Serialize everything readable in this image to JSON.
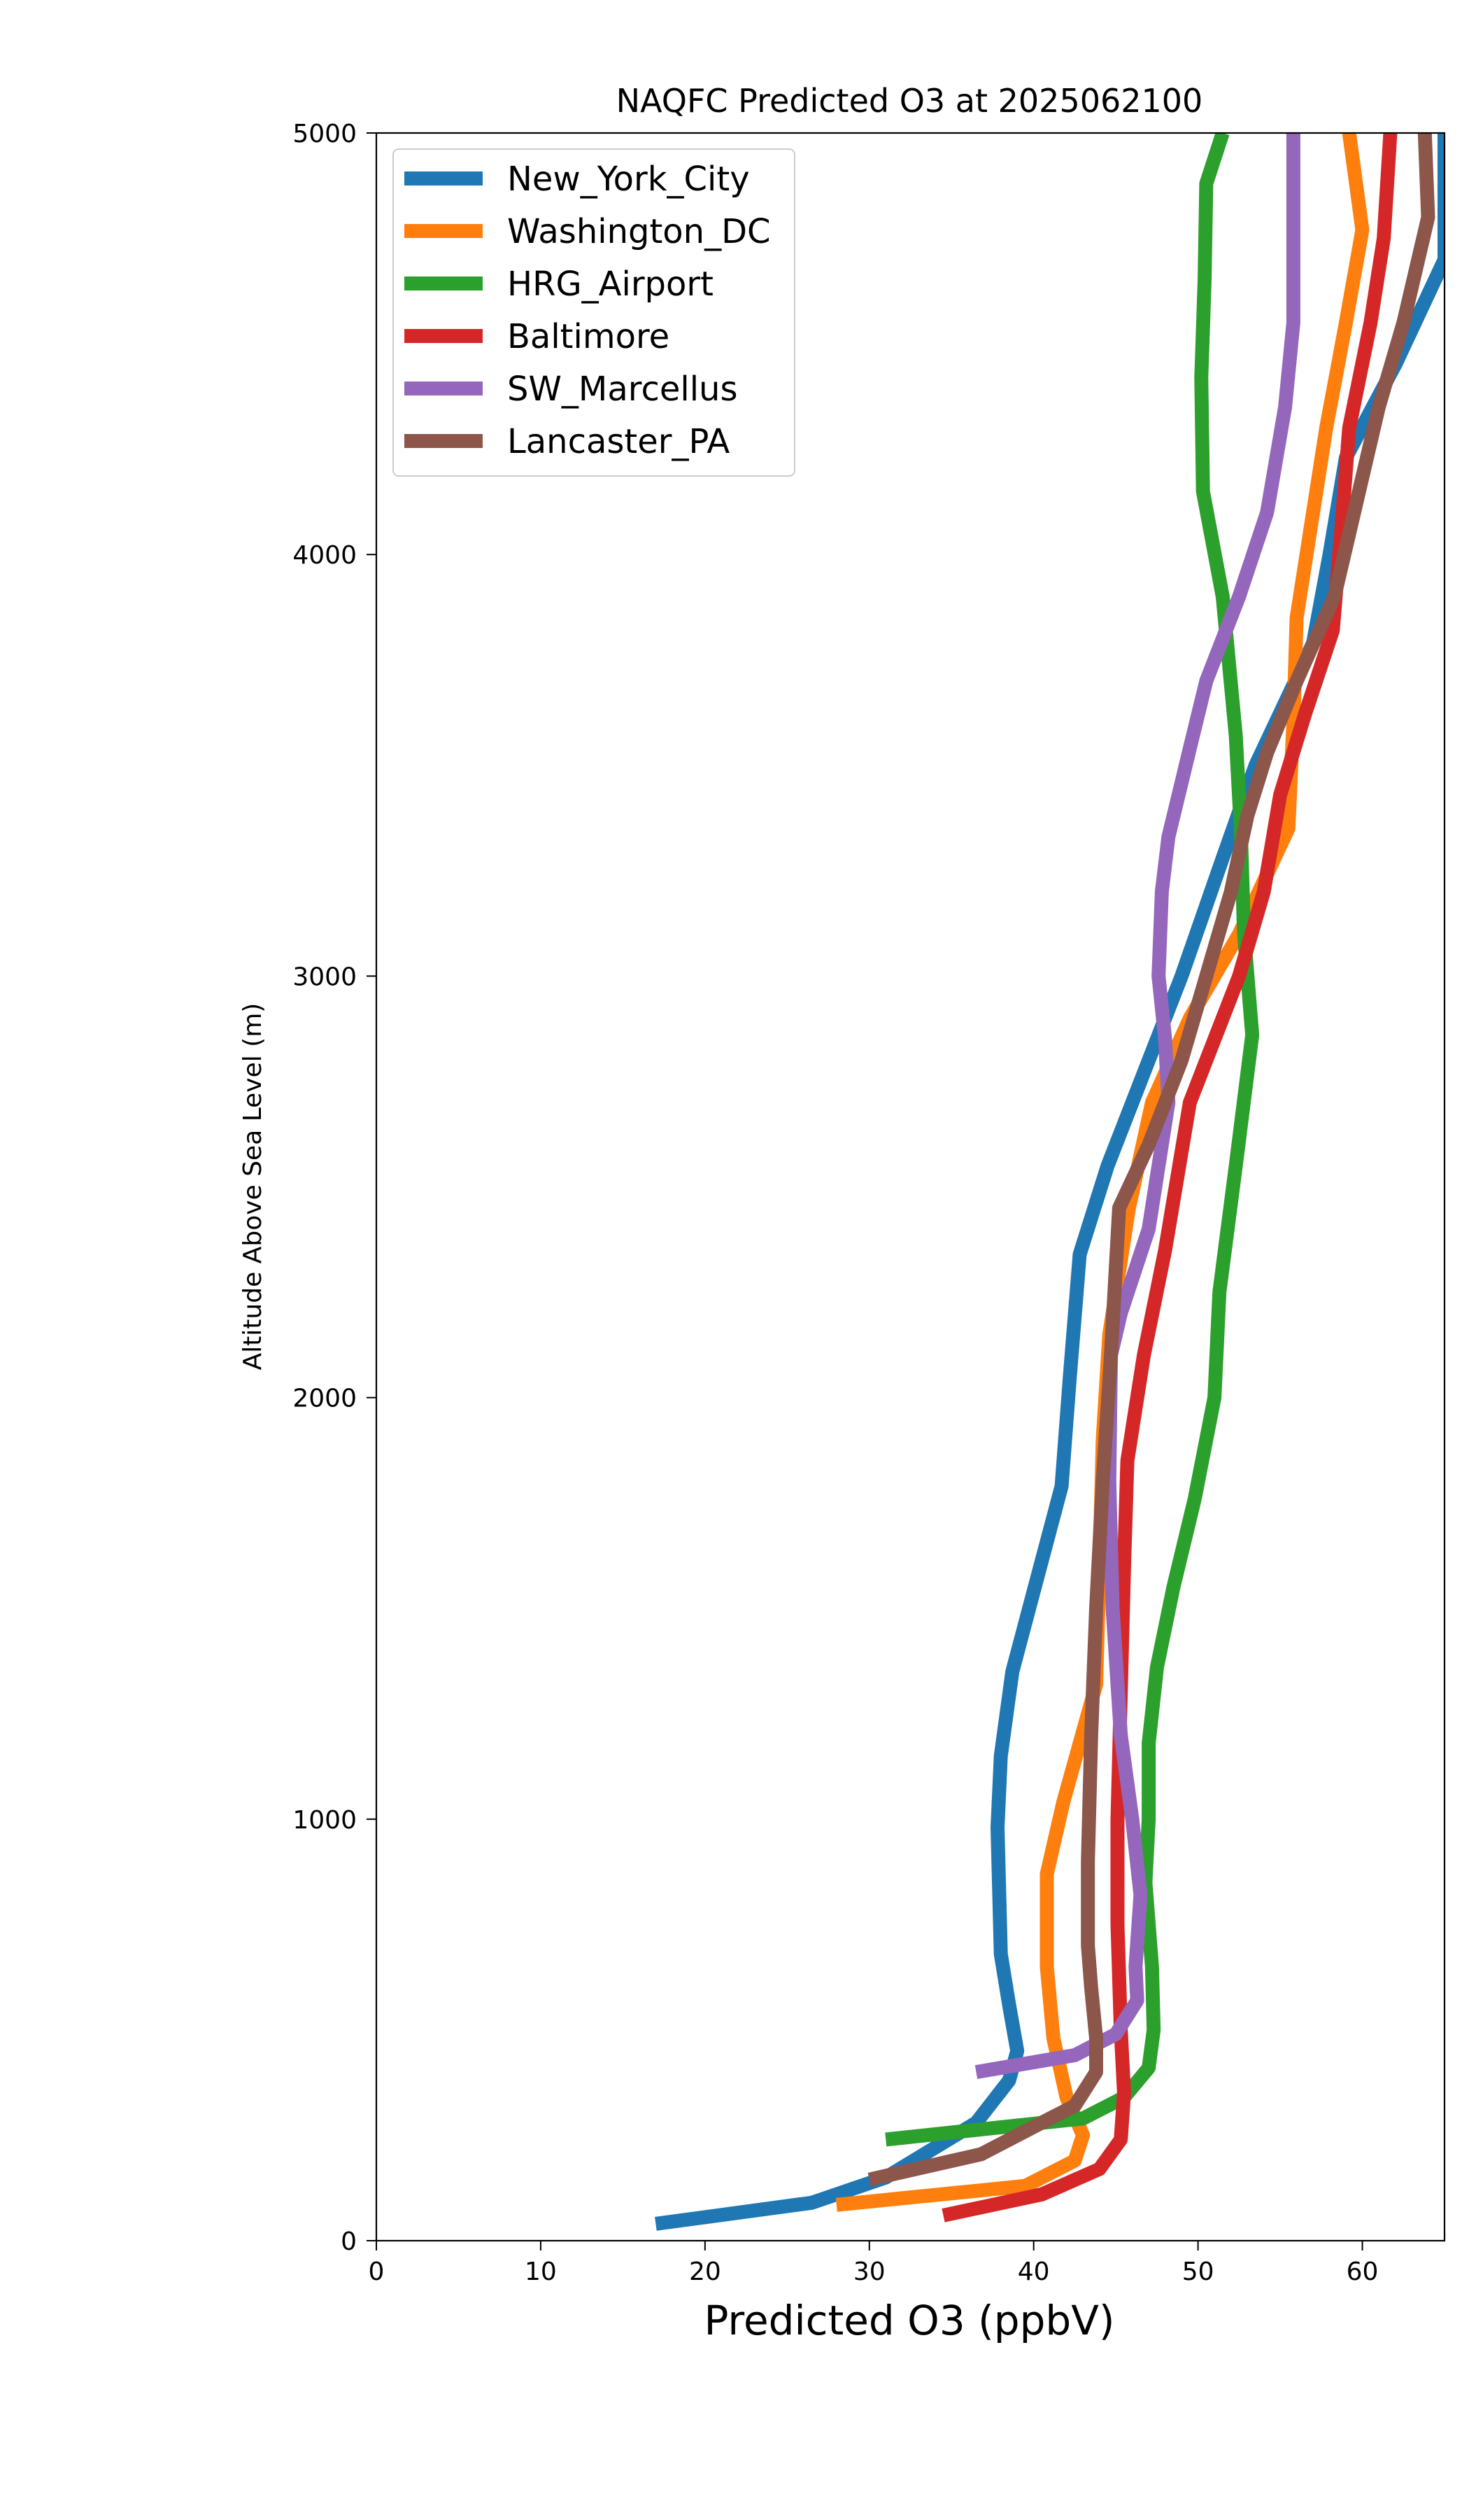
{
  "chart_data": {
    "type": "line",
    "title": "NAQFC Predicted O3 at 2025062100",
    "xlabel": "Predicted O3 (ppbV)",
    "ylabel": "Altitude Above Sea Level (m)",
    "xlim": [
      0,
      65
    ],
    "ylim": [
      0,
      5000
    ],
    "xticks": [
      0,
      10,
      20,
      30,
      40,
      50,
      60
    ],
    "yticks": [
      0,
      1000,
      2000,
      3000,
      4000,
      5000
    ],
    "grid": false,
    "legend_position": "top-left",
    "series": [
      {
        "name": "New_York_City",
        "color": "#1f77b4",
        "points": [
          [
            17,
            40
          ],
          [
            26.5,
            90
          ],
          [
            31,
            150
          ],
          [
            36.5,
            280
          ],
          [
            38.5,
            380
          ],
          [
            39,
            450
          ],
          [
            38.5,
            560
          ],
          [
            38,
            680
          ],
          [
            37.8,
            980
          ],
          [
            38,
            1150
          ],
          [
            38.7,
            1350
          ],
          [
            40.2,
            1570
          ],
          [
            41.7,
            1790
          ],
          [
            42.2,
            2050
          ],
          [
            42.8,
            2340
          ],
          [
            44.5,
            2550
          ],
          [
            47,
            2800
          ],
          [
            49,
            3000
          ],
          [
            51.5,
            3280
          ],
          [
            53.5,
            3500
          ],
          [
            57,
            3790
          ],
          [
            58,
            4000
          ],
          [
            59,
            4230
          ],
          [
            62,
            4450
          ],
          [
            65,
            4700
          ],
          [
            65,
            5000
          ]
        ]
      },
      {
        "name": "Washington_DC",
        "color": "#ff7f0e",
        "points": [
          [
            28,
            85
          ],
          [
            39.5,
            130
          ],
          [
            42.5,
            190
          ],
          [
            43,
            250
          ],
          [
            42,
            340
          ],
          [
            41.2,
            480
          ],
          [
            40.8,
            650
          ],
          [
            40.8,
            870
          ],
          [
            41.8,
            1040
          ],
          [
            43.8,
            1320
          ],
          [
            44,
            1600
          ],
          [
            44.2,
            1900
          ],
          [
            44.6,
            2150
          ],
          [
            45.8,
            2450
          ],
          [
            47.2,
            2700
          ],
          [
            49.5,
            2900
          ],
          [
            52.5,
            3100
          ],
          [
            55.5,
            3350
          ],
          [
            55.8,
            3600
          ],
          [
            56,
            3850
          ],
          [
            57,
            4100
          ],
          [
            57.8,
            4300
          ],
          [
            59,
            4550
          ],
          [
            60,
            4770
          ],
          [
            59.2,
            5000
          ]
        ]
      },
      {
        "name": "HRG_Airport",
        "color": "#2ca02c",
        "points": [
          [
            31,
            240
          ],
          [
            43,
            290
          ],
          [
            45.5,
            340
          ],
          [
            47,
            410
          ],
          [
            47.3,
            500
          ],
          [
            47.2,
            650
          ],
          [
            46.8,
            850
          ],
          [
            47,
            1000
          ],
          [
            47,
            1180
          ],
          [
            47.5,
            1360
          ],
          [
            48.5,
            1550
          ],
          [
            49.8,
            1760
          ],
          [
            51,
            2000
          ],
          [
            51.3,
            2250
          ],
          [
            52.3,
            2550
          ],
          [
            53.3,
            2860
          ],
          [
            52.8,
            3100
          ],
          [
            52.6,
            3350
          ],
          [
            52.3,
            3570
          ],
          [
            51.5,
            3900
          ],
          [
            50.3,
            4150
          ],
          [
            50.2,
            4420
          ],
          [
            50.4,
            4650
          ],
          [
            50.5,
            4880
          ],
          [
            51.5,
            5000
          ]
        ]
      },
      {
        "name": "Baltimore",
        "color": "#d62728",
        "points": [
          [
            34.5,
            60
          ],
          [
            40.5,
            110
          ],
          [
            44,
            170
          ],
          [
            45.3,
            240
          ],
          [
            45.5,
            350
          ],
          [
            45.3,
            500
          ],
          [
            45.1,
            750
          ],
          [
            45.1,
            1000
          ],
          [
            45.3,
            1300
          ],
          [
            45.5,
            1600
          ],
          [
            45.7,
            1850
          ],
          [
            46.7,
            2100
          ],
          [
            48,
            2350
          ],
          [
            49.5,
            2700
          ],
          [
            52.5,
            3000
          ],
          [
            54,
            3200
          ],
          [
            55,
            3430
          ],
          [
            56.5,
            3620
          ],
          [
            58.2,
            3820
          ],
          [
            58.7,
            4050
          ],
          [
            59.2,
            4300
          ],
          [
            60.5,
            4550
          ],
          [
            61.3,
            4750
          ],
          [
            61.7,
            5000
          ]
        ]
      },
      {
        "name": "SW_Marcellus",
        "color": "#9467bd",
        "points": [
          [
            36.5,
            400
          ],
          [
            42.5,
            440
          ],
          [
            45,
            490
          ],
          [
            46.3,
            570
          ],
          [
            46.2,
            650
          ],
          [
            46.5,
            820
          ],
          [
            46,
            1000
          ],
          [
            45.3,
            1200
          ],
          [
            44.8,
            1500
          ],
          [
            44.6,
            1800
          ],
          [
            44.7,
            2100
          ],
          [
            45.3,
            2200
          ],
          [
            47,
            2400
          ],
          [
            48.2,
            2700
          ],
          [
            48,
            2850
          ],
          [
            47.6,
            3000
          ],
          [
            47.8,
            3200
          ],
          [
            48.2,
            3330
          ],
          [
            49.5,
            3540
          ],
          [
            50.5,
            3700
          ],
          [
            52.5,
            3900
          ],
          [
            54.2,
            4100
          ],
          [
            55.3,
            4350
          ],
          [
            55.8,
            4550
          ],
          [
            55.8,
            4780
          ],
          [
            55.8,
            5000
          ]
        ]
      },
      {
        "name": "Lancaster_PA",
        "color": "#8c564b",
        "points": [
          [
            30,
            145
          ],
          [
            36.8,
            205
          ],
          [
            40,
            270
          ],
          [
            42.5,
            320
          ],
          [
            43.8,
            400
          ],
          [
            43.8,
            480
          ],
          [
            43.5,
            600
          ],
          [
            43.3,
            700
          ],
          [
            43.3,
            900
          ],
          [
            43.5,
            1200
          ],
          [
            43.8,
            1500
          ],
          [
            44.2,
            1800
          ],
          [
            44.7,
            2100
          ],
          [
            45.2,
            2450
          ],
          [
            47,
            2600
          ],
          [
            49,
            2800
          ],
          [
            50.5,
            3000
          ],
          [
            52,
            3200
          ],
          [
            53,
            3380
          ],
          [
            54.2,
            3530
          ],
          [
            56,
            3700
          ],
          [
            58.3,
            3900
          ],
          [
            59.5,
            4100
          ],
          [
            61,
            4350
          ],
          [
            62.5,
            4550
          ],
          [
            64,
            4800
          ],
          [
            63.8,
            5000
          ]
        ]
      }
    ]
  }
}
